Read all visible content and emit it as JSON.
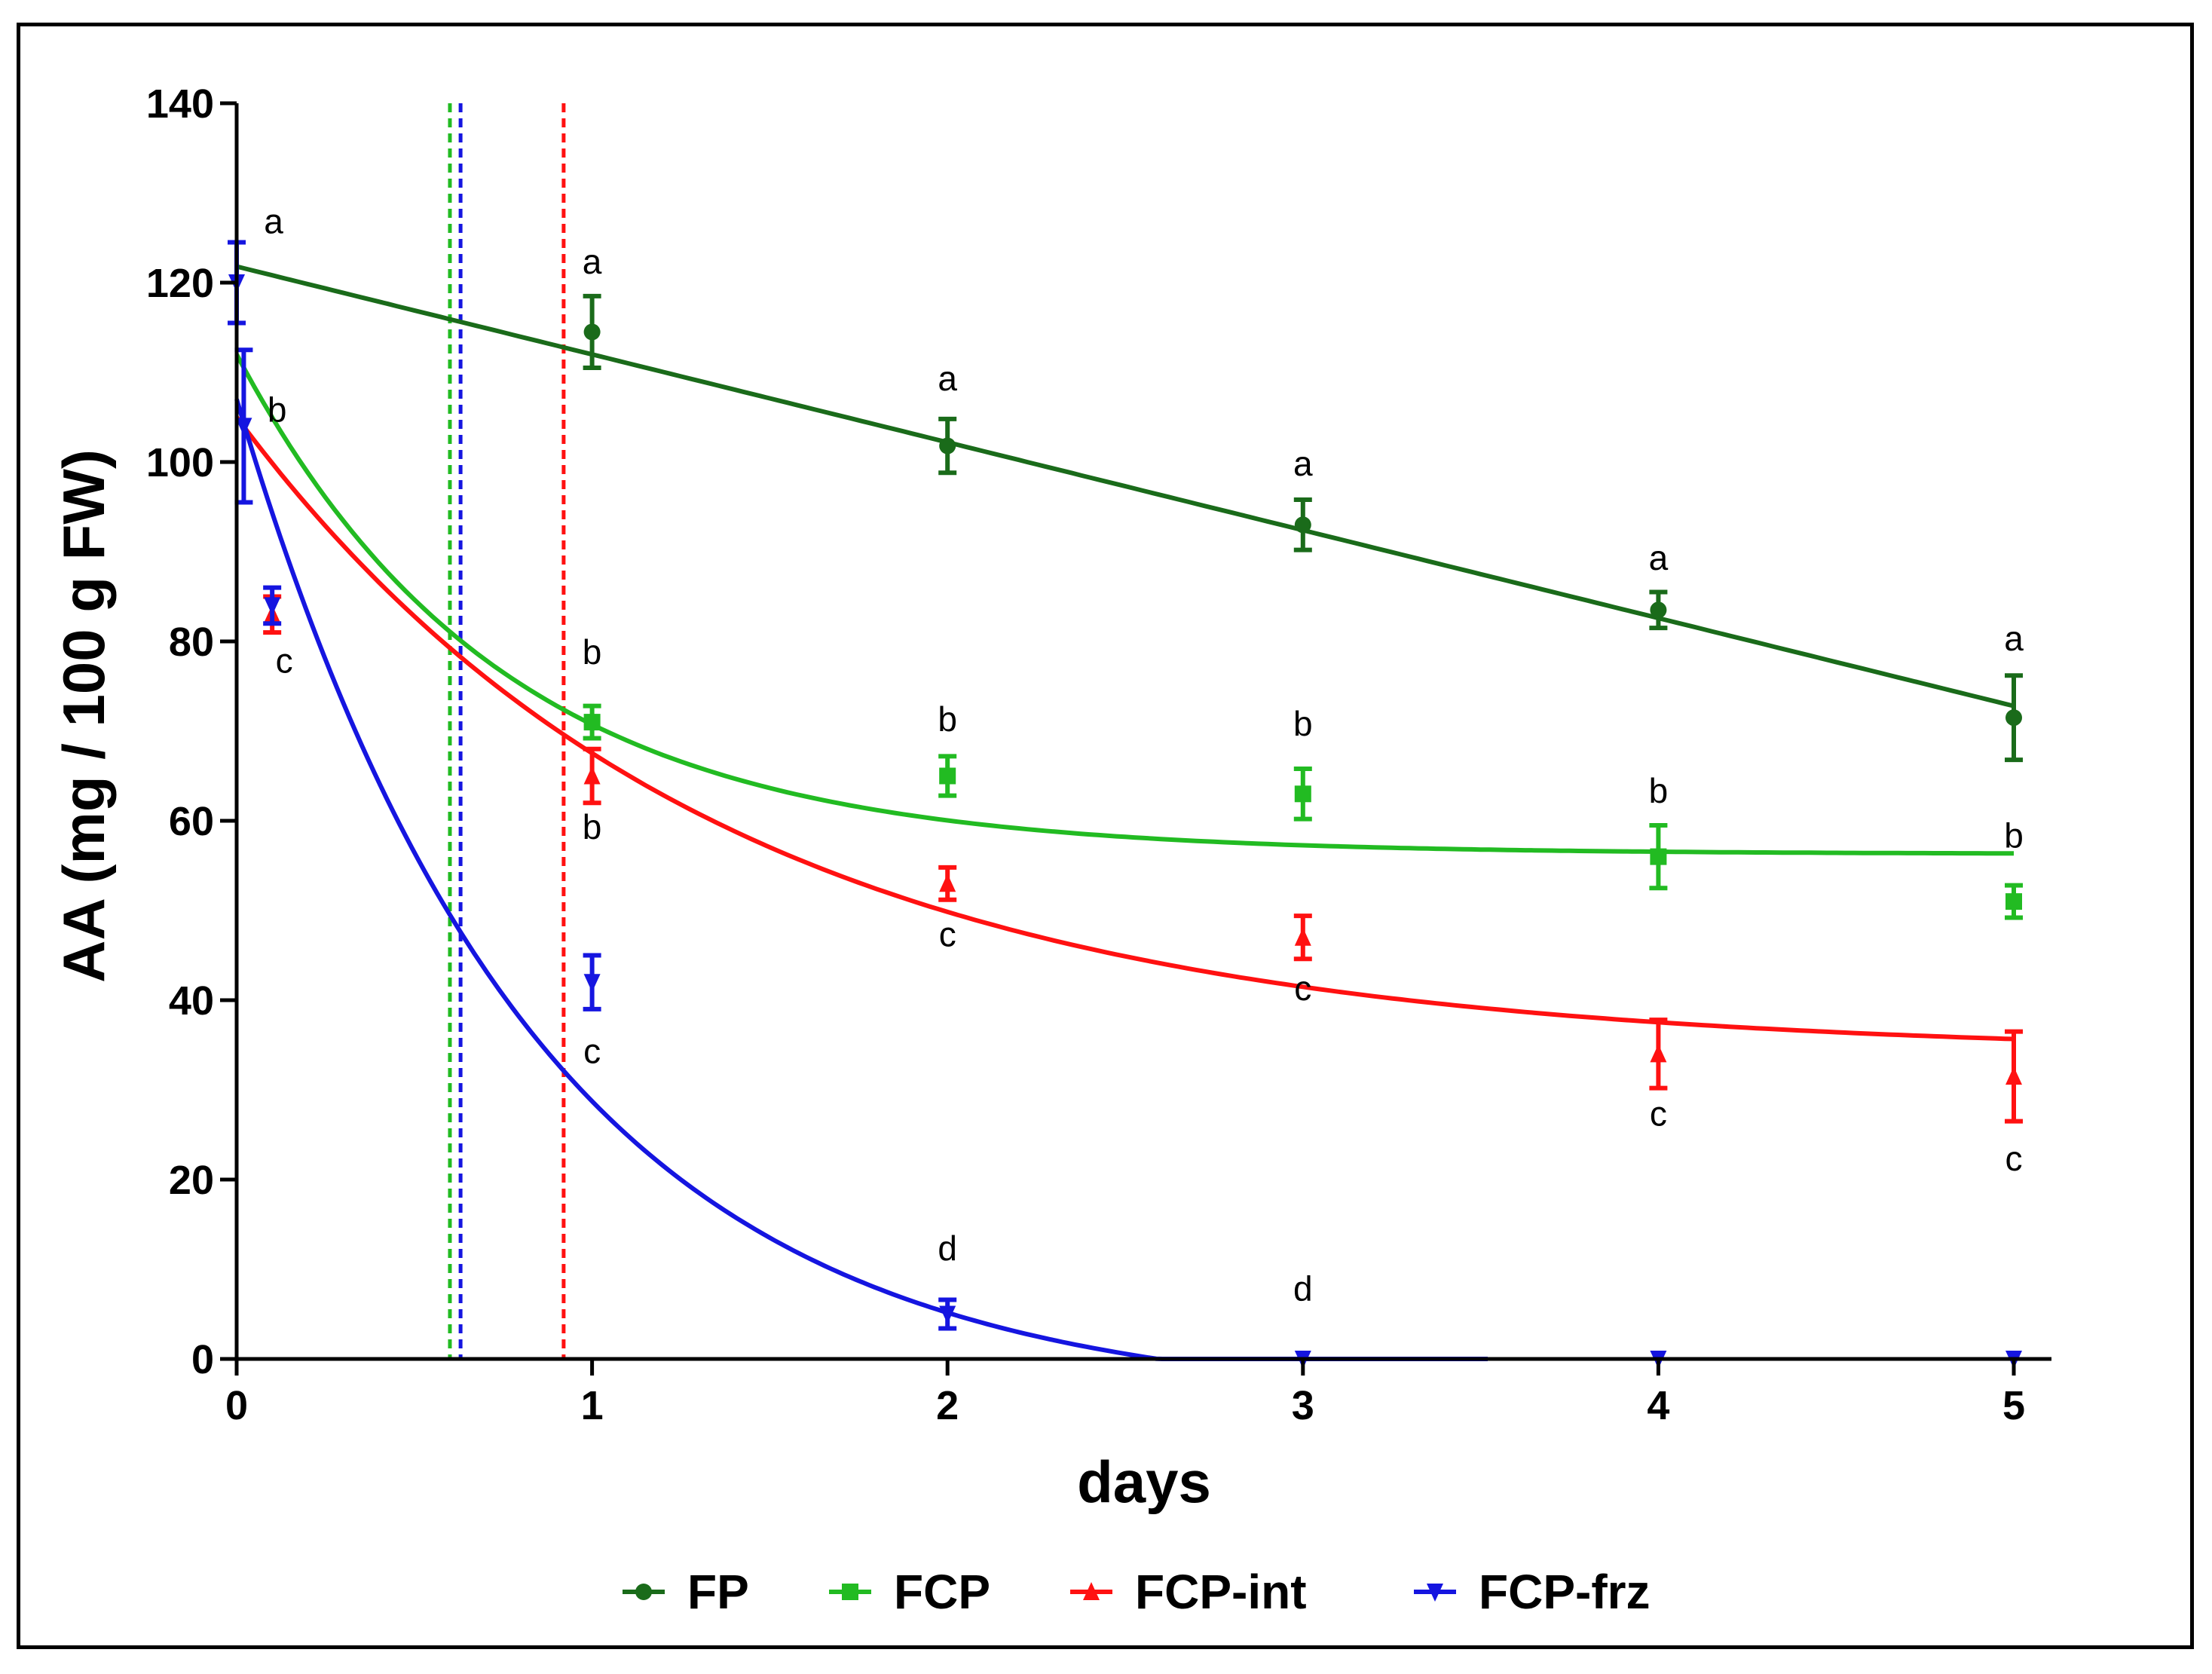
{
  "chart_data": {
    "type": "line",
    "title": "",
    "xlabel": "days",
    "ylabel": "AA (mg / 100 g FW)",
    "xlim": [
      0,
      5
    ],
    "ylim": [
      0,
      140
    ],
    "xticks": [
      "0",
      "1",
      "2",
      "3",
      "4",
      "5"
    ],
    "yticks": [
      "0",
      "20",
      "40",
      "60",
      "80",
      "100",
      "120",
      "140"
    ],
    "grid": false,
    "legend_position": "bottom",
    "series": [
      {
        "name": "FP",
        "color": "#1a6b1a",
        "marker": "circle",
        "x": [
          1,
          2,
          3,
          4,
          5
        ],
        "y": [
          114.5,
          101.8,
          93.0,
          83.5,
          71.5
        ],
        "err": [
          4.0,
          3.0,
          2.8,
          2.0,
          4.7
        ],
        "fit": {
          "model": "linear",
          "a": 121.8,
          "b": -9.8,
          "x_end": 5
        }
      },
      {
        "name": "FCP",
        "color": "#22bb22",
        "marker": "square",
        "x": [
          1,
          2,
          3,
          4,
          5
        ],
        "y": [
          71.0,
          65.0,
          63.0,
          56.0,
          51.0
        ],
        "err": [
          1.8,
          2.2,
          2.8,
          3.5,
          1.8
        ],
        "fit": {
          "model": "exp",
          "y0": 112,
          "plateau": 56.3,
          "k": 1.35,
          "x_end": 5
        }
      },
      {
        "name": "FCP-int",
        "color": "#ff1111",
        "marker": "triangle-up",
        "x": [
          0.1,
          1,
          2,
          3,
          4,
          5
        ],
        "y": [
          83.0,
          65.0,
          53.0,
          47.0,
          34.0,
          31.5
        ],
        "err": [
          2.0,
          3.0,
          1.8,
          2.4,
          3.8,
          5.0
        ],
        "fit": {
          "model": "exp",
          "y0": 105,
          "plateau": 34.0,
          "k": 0.75,
          "x_end": 5
        }
      },
      {
        "name": "FCP-frz",
        "color": "#1515e0",
        "marker": "triangle-down",
        "x": [
          0,
          0.02,
          0.1,
          1,
          2,
          3,
          4,
          5
        ],
        "y": [
          120.0,
          104.0,
          84.0,
          42.0,
          5.0,
          0.0,
          0.0,
          0.0
        ],
        "err": [
          4.5,
          8.5,
          2.0,
          3.0,
          1.6,
          0,
          0,
          0
        ],
        "fit": {
          "model": "exp",
          "y0": 107,
          "plateau": -5.0,
          "k": 1.2,
          "x_end": 3.52
        }
      }
    ],
    "reference_lines": [
      {
        "x": 0.6,
        "color": "#22bb22",
        "style": "dashed"
      },
      {
        "x": 0.63,
        "color": "#1515e0",
        "style": "dashed"
      },
      {
        "x": 0.92,
        "color": "#ff1111",
        "style": "dashed"
      }
    ],
    "annotations": [
      {
        "text": "a",
        "x": 0.07,
        "y": 125.5
      },
      {
        "text": "b",
        "x": 0.08,
        "y": 104.5
      },
      {
        "text": "c",
        "x": 0.1,
        "y": 76.5
      },
      {
        "text": "a",
        "x": 1.0,
        "y": 121.0
      },
      {
        "text": "b",
        "x": 1.0,
        "y": 77.5
      },
      {
        "text": "b",
        "x": 1.0,
        "y": 58.0
      },
      {
        "text": "c",
        "x": 1.0,
        "y": 33.0
      },
      {
        "text": "a",
        "x": 2.0,
        "y": 108.0
      },
      {
        "text": "b",
        "x": 2.0,
        "y": 70.0
      },
      {
        "text": "c",
        "x": 2.0,
        "y": 46.0
      },
      {
        "text": "d",
        "x": 2.0,
        "y": 11.0
      },
      {
        "text": "a",
        "x": 3.0,
        "y": 98.5
      },
      {
        "text": "b",
        "x": 3.0,
        "y": 69.5
      },
      {
        "text": "c",
        "x": 3.0,
        "y": 40.0
      },
      {
        "text": "d",
        "x": 3.0,
        "y": 6.5
      },
      {
        "text": "a",
        "x": 4.0,
        "y": 88.0
      },
      {
        "text": "b",
        "x": 4.0,
        "y": 62.0
      },
      {
        "text": "c",
        "x": 4.0,
        "y": 26.0
      },
      {
        "text": "a",
        "x": 5.0,
        "y": 79.0
      },
      {
        "text": "b",
        "x": 5.0,
        "y": 57.0
      },
      {
        "text": "c",
        "x": 5.0,
        "y": 21.0
      }
    ]
  }
}
